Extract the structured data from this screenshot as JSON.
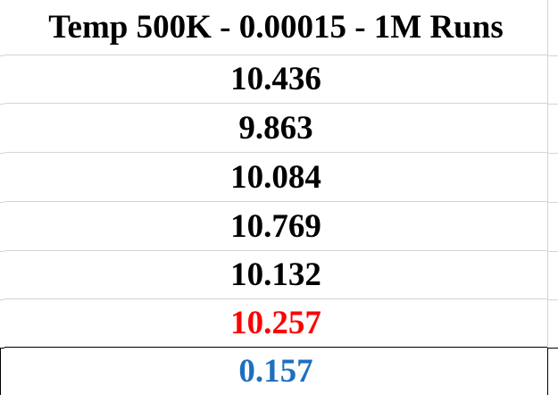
{
  "spreadsheet": {
    "header": "Temp 500K - 0.00015 - 1M Runs",
    "values": [
      "10.436",
      "9.863",
      "10.084",
      "10.769",
      "10.132"
    ],
    "average": "10.257",
    "deviation": "0.157",
    "colors": {
      "text": "#000000",
      "average": "#ff0000",
      "deviation": "#1e6fc0",
      "gridline": "#d4d4d4"
    }
  }
}
